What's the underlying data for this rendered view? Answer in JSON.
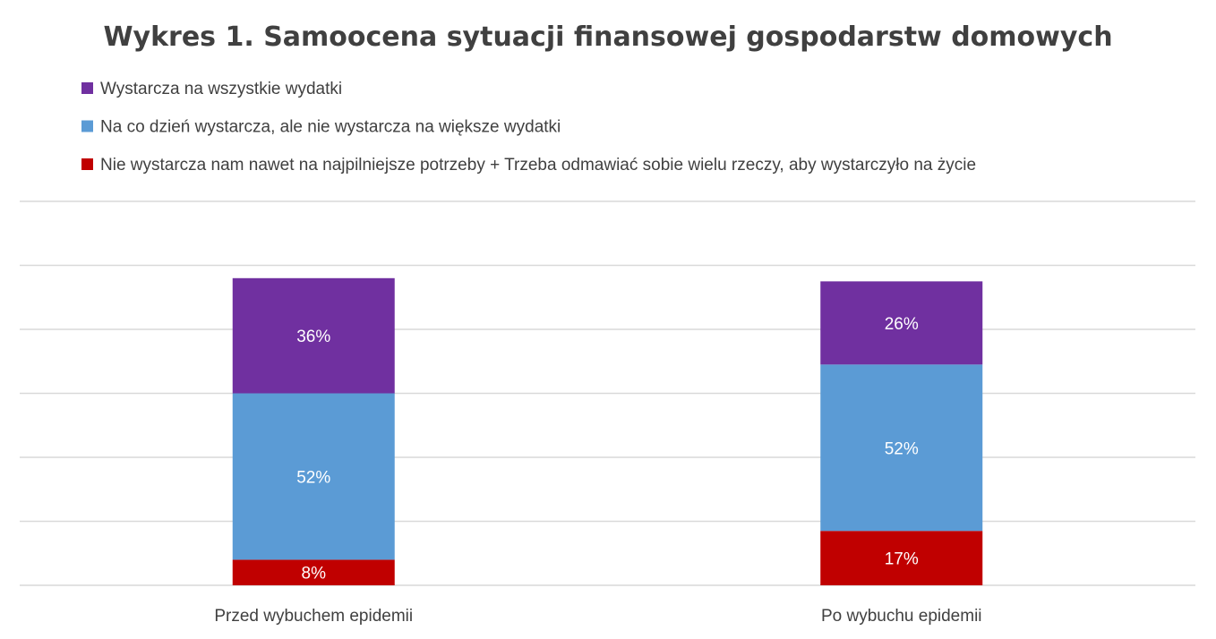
{
  "chart_data": {
    "type": "bar",
    "stacked": true,
    "title": "Wykres 1. Samoocena sytuacji finansowej gospodarstw domowych",
    "categories": [
      "Przed wybuchem epidemii",
      "Po wybuchu epidemii"
    ],
    "series": [
      {
        "name": "Nie wystarcza nam nawet na najpilniejsze potrzeby + Trzeba odmawiać sobie wielu rzeczy, aby wystarczyło na życie",
        "values": [
          8,
          17
        ],
        "labels": [
          "8%",
          "17%"
        ],
        "color": "#C00000"
      },
      {
        "name": "Na co dzień wystarcza, ale nie wystarcza na większe wydatki",
        "values": [
          52,
          52
        ],
        "labels": [
          "52%",
          "52%"
        ],
        "color": "#5B9BD5"
      },
      {
        "name": "Wystarcza na wszystkie wydatki",
        "values": [
          36,
          26
        ],
        "labels": [
          "36%",
          "26%"
        ],
        "color": "#7030A0"
      }
    ],
    "legend_order": [
      2,
      1,
      0
    ],
    "legend_position": "top",
    "ylim": [
      0,
      120
    ],
    "ytick_step": 20,
    "grid": true,
    "xlabel": "",
    "ylabel": ""
  }
}
